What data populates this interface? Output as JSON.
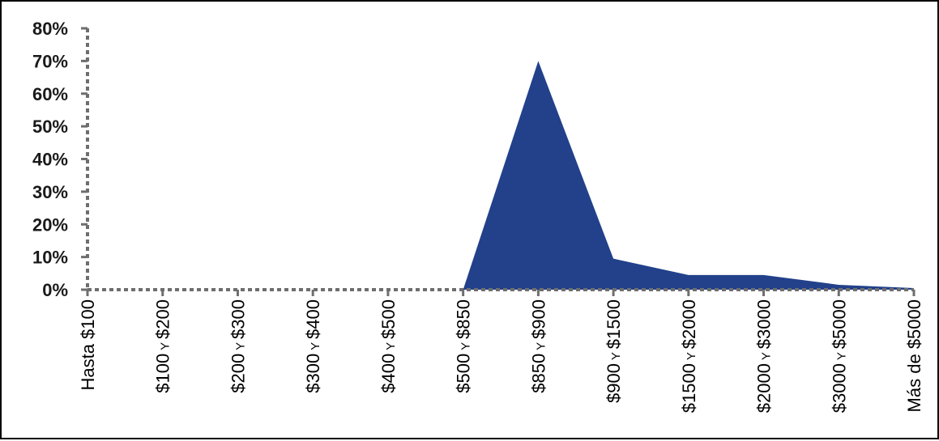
{
  "chart_data": {
    "type": "area",
    "title": "",
    "xlabel": "",
    "ylabel": "",
    "ylim": [
      0,
      80
    ],
    "y_ticks": [
      "0%",
      "10%",
      "20%",
      "30%",
      "40%",
      "50%",
      "60%",
      "70%",
      "80%"
    ],
    "y_tick_values": [
      0,
      10,
      20,
      30,
      40,
      50,
      60,
      70,
      80
    ],
    "grid": false,
    "legend": "none",
    "categories": [
      {
        "pre": "Hasta $100",
        "conj": "",
        "post": ""
      },
      {
        "pre": "$100",
        "conj": "Y",
        "post": "$200"
      },
      {
        "pre": "$200",
        "conj": "Y",
        "post": "$300"
      },
      {
        "pre": "$300",
        "conj": "Y",
        "post": "$400"
      },
      {
        "pre": "$400",
        "conj": "Y",
        "post": "$500"
      },
      {
        "pre": "$500",
        "conj": "Y",
        "post": "$850"
      },
      {
        "pre": "$850",
        "conj": "Y",
        "post": "$900"
      },
      {
        "pre": "$900",
        "conj": "Y",
        "post": "$1500"
      },
      {
        "pre": "$1500",
        "conj": "Y",
        "post": "$2000"
      },
      {
        "pre": "$2000",
        "conj": "Y",
        "post": "$3000"
      },
      {
        "pre": "$3000",
        "conj": "Y",
        "post": "$5000"
      },
      {
        "pre": "Más de $5000",
        "conj": "",
        "post": ""
      }
    ],
    "values": [
      0,
      0,
      0,
      0,
      0,
      0,
      70,
      9.5,
      4.5,
      4.5,
      1.5,
      0.5
    ],
    "fill_color": "#22418a",
    "axis_color": "#6e6e6e"
  }
}
